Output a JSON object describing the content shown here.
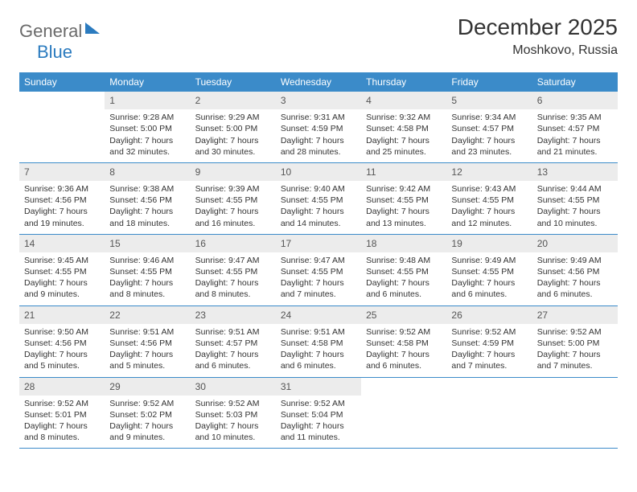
{
  "brand": {
    "text1": "General",
    "text2": "Blue"
  },
  "header": {
    "month": "December 2025",
    "location": "Moshkovo, Russia"
  },
  "colors": {
    "header_bar": "#3b8bc9",
    "daynum_bg": "#ececec",
    "rule": "#3b8bc9",
    "text": "#333333",
    "logo_gray": "#6a6a6a",
    "logo_blue": "#2b7bbf"
  },
  "dow": [
    "Sunday",
    "Monday",
    "Tuesday",
    "Wednesday",
    "Thursday",
    "Friday",
    "Saturday"
  ],
  "weeks": [
    [
      {
        "n": "",
        "sr": "",
        "ss": "",
        "dl": ""
      },
      {
        "n": "1",
        "sr": "Sunrise: 9:28 AM",
        "ss": "Sunset: 5:00 PM",
        "dl": "Daylight: 7 hours and 32 minutes."
      },
      {
        "n": "2",
        "sr": "Sunrise: 9:29 AM",
        "ss": "Sunset: 5:00 PM",
        "dl": "Daylight: 7 hours and 30 minutes."
      },
      {
        "n": "3",
        "sr": "Sunrise: 9:31 AM",
        "ss": "Sunset: 4:59 PM",
        "dl": "Daylight: 7 hours and 28 minutes."
      },
      {
        "n": "4",
        "sr": "Sunrise: 9:32 AM",
        "ss": "Sunset: 4:58 PM",
        "dl": "Daylight: 7 hours and 25 minutes."
      },
      {
        "n": "5",
        "sr": "Sunrise: 9:34 AM",
        "ss": "Sunset: 4:57 PM",
        "dl": "Daylight: 7 hours and 23 minutes."
      },
      {
        "n": "6",
        "sr": "Sunrise: 9:35 AM",
        "ss": "Sunset: 4:57 PM",
        "dl": "Daylight: 7 hours and 21 minutes."
      }
    ],
    [
      {
        "n": "7",
        "sr": "Sunrise: 9:36 AM",
        "ss": "Sunset: 4:56 PM",
        "dl": "Daylight: 7 hours and 19 minutes."
      },
      {
        "n": "8",
        "sr": "Sunrise: 9:38 AM",
        "ss": "Sunset: 4:56 PM",
        "dl": "Daylight: 7 hours and 18 minutes."
      },
      {
        "n": "9",
        "sr": "Sunrise: 9:39 AM",
        "ss": "Sunset: 4:55 PM",
        "dl": "Daylight: 7 hours and 16 minutes."
      },
      {
        "n": "10",
        "sr": "Sunrise: 9:40 AM",
        "ss": "Sunset: 4:55 PM",
        "dl": "Daylight: 7 hours and 14 minutes."
      },
      {
        "n": "11",
        "sr": "Sunrise: 9:42 AM",
        "ss": "Sunset: 4:55 PM",
        "dl": "Daylight: 7 hours and 13 minutes."
      },
      {
        "n": "12",
        "sr": "Sunrise: 9:43 AM",
        "ss": "Sunset: 4:55 PM",
        "dl": "Daylight: 7 hours and 12 minutes."
      },
      {
        "n": "13",
        "sr": "Sunrise: 9:44 AM",
        "ss": "Sunset: 4:55 PM",
        "dl": "Daylight: 7 hours and 10 minutes."
      }
    ],
    [
      {
        "n": "14",
        "sr": "Sunrise: 9:45 AM",
        "ss": "Sunset: 4:55 PM",
        "dl": "Daylight: 7 hours and 9 minutes."
      },
      {
        "n": "15",
        "sr": "Sunrise: 9:46 AM",
        "ss": "Sunset: 4:55 PM",
        "dl": "Daylight: 7 hours and 8 minutes."
      },
      {
        "n": "16",
        "sr": "Sunrise: 9:47 AM",
        "ss": "Sunset: 4:55 PM",
        "dl": "Daylight: 7 hours and 8 minutes."
      },
      {
        "n": "17",
        "sr": "Sunrise: 9:47 AM",
        "ss": "Sunset: 4:55 PM",
        "dl": "Daylight: 7 hours and 7 minutes."
      },
      {
        "n": "18",
        "sr": "Sunrise: 9:48 AM",
        "ss": "Sunset: 4:55 PM",
        "dl": "Daylight: 7 hours and 6 minutes."
      },
      {
        "n": "19",
        "sr": "Sunrise: 9:49 AM",
        "ss": "Sunset: 4:55 PM",
        "dl": "Daylight: 7 hours and 6 minutes."
      },
      {
        "n": "20",
        "sr": "Sunrise: 9:49 AM",
        "ss": "Sunset: 4:56 PM",
        "dl": "Daylight: 7 hours and 6 minutes."
      }
    ],
    [
      {
        "n": "21",
        "sr": "Sunrise: 9:50 AM",
        "ss": "Sunset: 4:56 PM",
        "dl": "Daylight: 7 hours and 5 minutes."
      },
      {
        "n": "22",
        "sr": "Sunrise: 9:51 AM",
        "ss": "Sunset: 4:56 PM",
        "dl": "Daylight: 7 hours and 5 minutes."
      },
      {
        "n": "23",
        "sr": "Sunrise: 9:51 AM",
        "ss": "Sunset: 4:57 PM",
        "dl": "Daylight: 7 hours and 6 minutes."
      },
      {
        "n": "24",
        "sr": "Sunrise: 9:51 AM",
        "ss": "Sunset: 4:58 PM",
        "dl": "Daylight: 7 hours and 6 minutes."
      },
      {
        "n": "25",
        "sr": "Sunrise: 9:52 AM",
        "ss": "Sunset: 4:58 PM",
        "dl": "Daylight: 7 hours and 6 minutes."
      },
      {
        "n": "26",
        "sr": "Sunrise: 9:52 AM",
        "ss": "Sunset: 4:59 PM",
        "dl": "Daylight: 7 hours and 7 minutes."
      },
      {
        "n": "27",
        "sr": "Sunrise: 9:52 AM",
        "ss": "Sunset: 5:00 PM",
        "dl": "Daylight: 7 hours and 7 minutes."
      }
    ],
    [
      {
        "n": "28",
        "sr": "Sunrise: 9:52 AM",
        "ss": "Sunset: 5:01 PM",
        "dl": "Daylight: 7 hours and 8 minutes."
      },
      {
        "n": "29",
        "sr": "Sunrise: 9:52 AM",
        "ss": "Sunset: 5:02 PM",
        "dl": "Daylight: 7 hours and 9 minutes."
      },
      {
        "n": "30",
        "sr": "Sunrise: 9:52 AM",
        "ss": "Sunset: 5:03 PM",
        "dl": "Daylight: 7 hours and 10 minutes."
      },
      {
        "n": "31",
        "sr": "Sunrise: 9:52 AM",
        "ss": "Sunset: 5:04 PM",
        "dl": "Daylight: 7 hours and 11 minutes."
      },
      {
        "n": "",
        "sr": "",
        "ss": "",
        "dl": ""
      },
      {
        "n": "",
        "sr": "",
        "ss": "",
        "dl": ""
      },
      {
        "n": "",
        "sr": "",
        "ss": "",
        "dl": ""
      }
    ]
  ]
}
